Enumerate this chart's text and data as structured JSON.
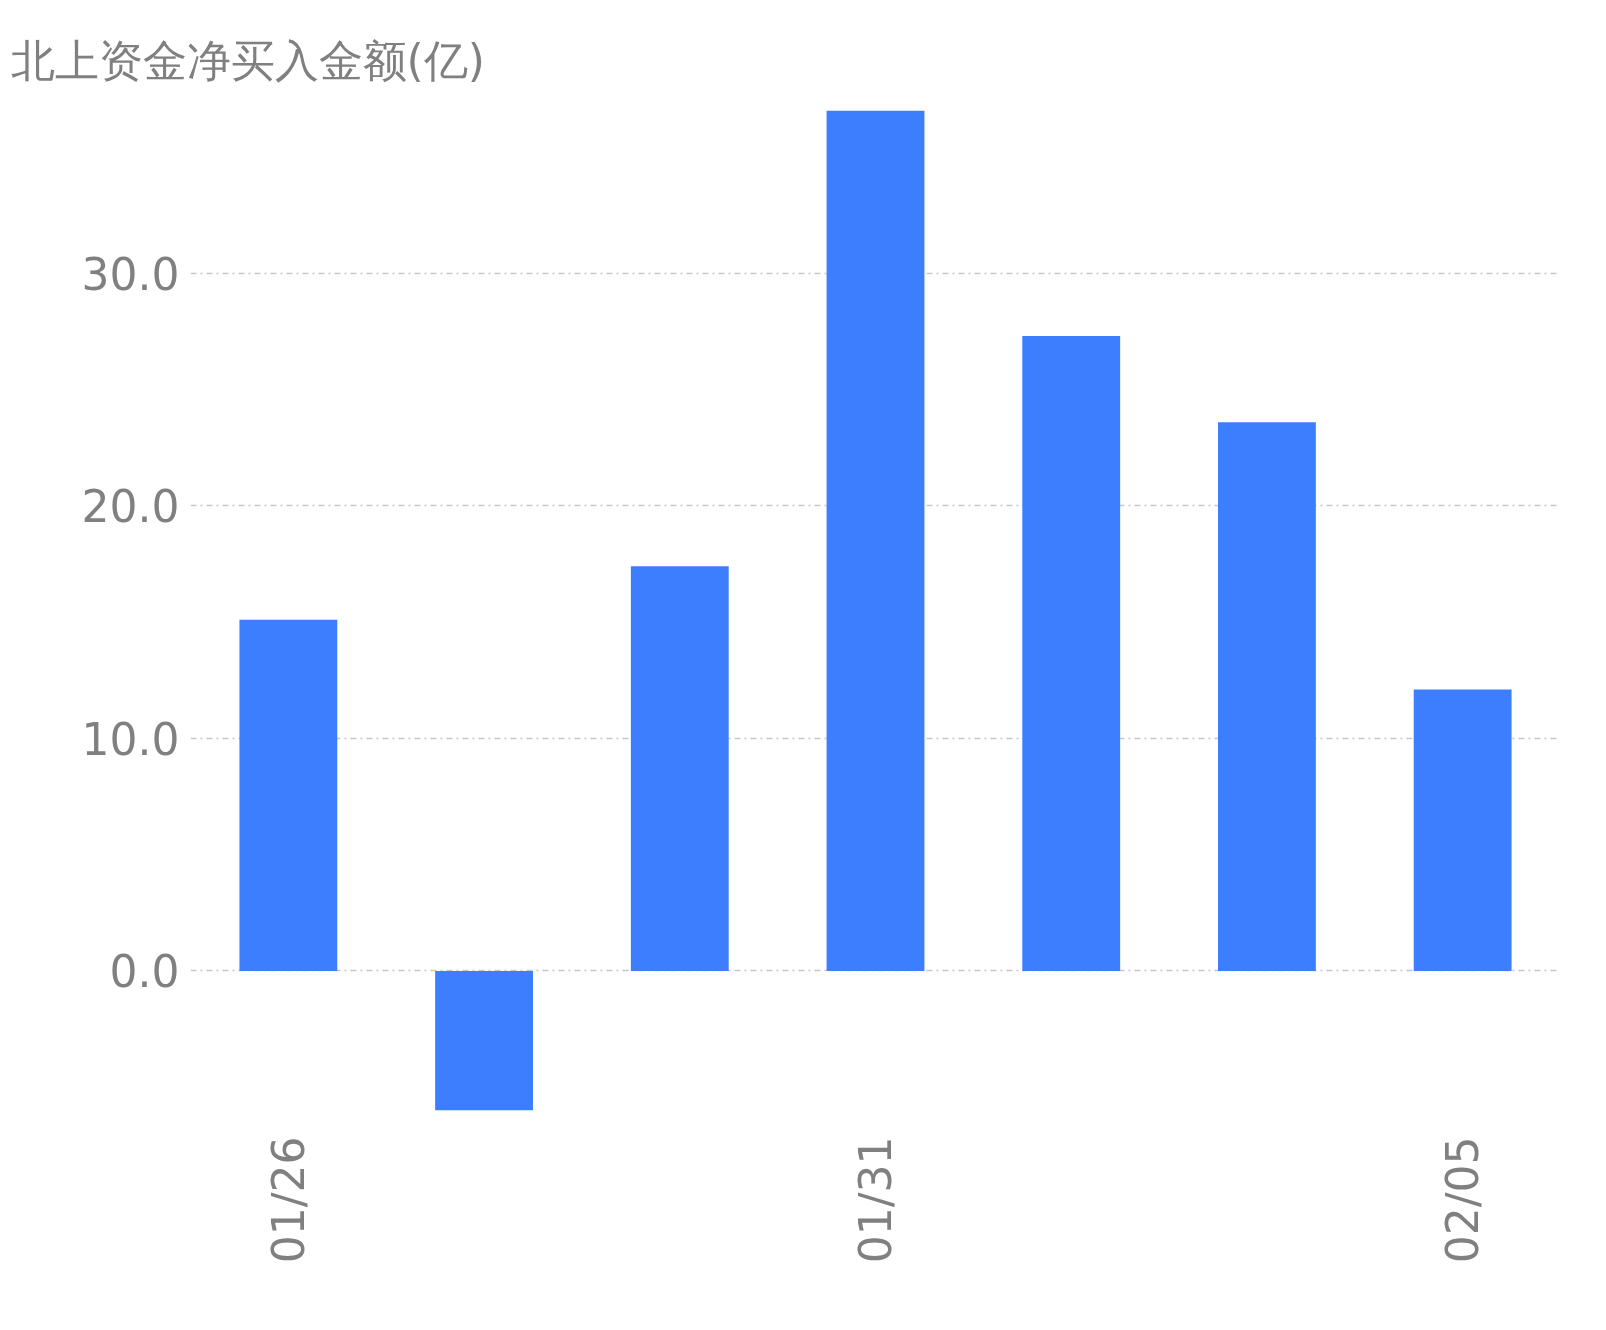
{
  "chart_data": {
    "type": "bar",
    "title": "北上资金净买入金额(亿)",
    "categories": [
      "01/26",
      null,
      null,
      "01/31",
      null,
      null,
      "02/05"
    ],
    "values": [
      15.1,
      -6.0,
      17.4,
      37.0,
      27.3,
      23.6,
      12.1
    ],
    "color": "#3d7eff",
    "ylim": [
      -6.0,
      37.0
    ],
    "yticks": [
      {
        "value": 0,
        "label": "0.0"
      },
      {
        "value": 10,
        "label": "10.0"
      },
      {
        "value": 20,
        "label": "20.0"
      },
      {
        "value": 30,
        "label": "30.0"
      }
    ],
    "grid": "y"
  }
}
